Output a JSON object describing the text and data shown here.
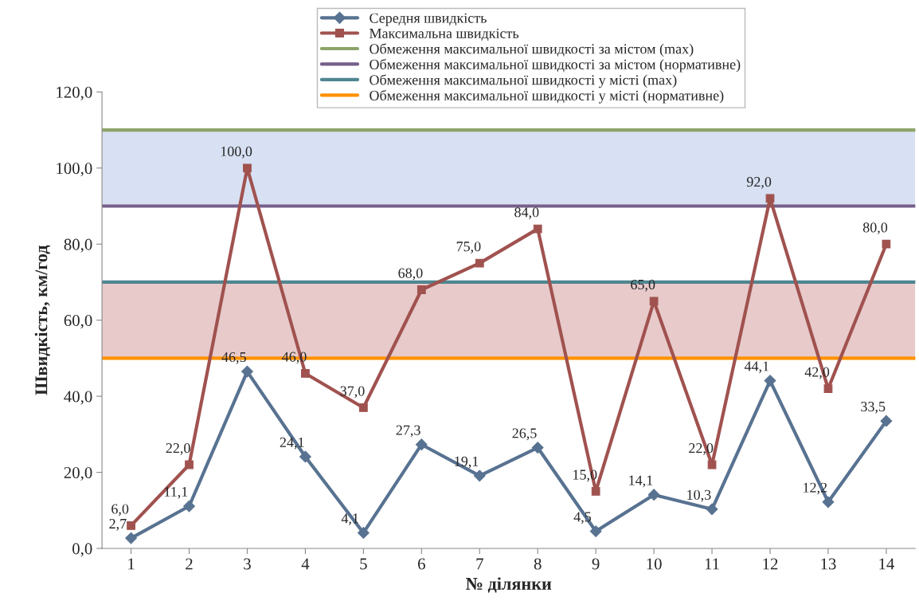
{
  "chart_data": {
    "type": "line",
    "xlabel": "№ ділянки",
    "ylabel": "Швидкість, км/год",
    "categories": [
      "1",
      "2",
      "3",
      "4",
      "5",
      "6",
      "7",
      "8",
      "9",
      "10",
      "11",
      "12",
      "13",
      "14"
    ],
    "series": [
      {
        "name": "Середня швидкість",
        "color": "#587291",
        "marker": "diamond",
        "values": [
          2.7,
          11.1,
          46.5,
          24.1,
          4.1,
          27.3,
          19.1,
          26.5,
          4.5,
          14.1,
          10.3,
          44.1,
          12.2,
          33.5
        ],
        "value_labels": [
          "2,7",
          "11,1",
          "46,5",
          "24,1",
          "4,1",
          "27,3",
          "19,1",
          "26,5",
          "4,5",
          "14,1",
          "10,3",
          "44,1",
          "12,2",
          "33,5"
        ]
      },
      {
        "name": "Максимальна швидкість",
        "color": "#a0524f",
        "marker": "square",
        "values": [
          6.0,
          22.0,
          100.0,
          46.0,
          37.0,
          68.0,
          75.0,
          84.0,
          15.0,
          65.0,
          22.0,
          92.0,
          42.0,
          80.0
        ],
        "value_labels": [
          "6,0",
          "22,0",
          "100,0",
          "46,0",
          "37,0",
          "68,0",
          "75,0",
          "84,0",
          "15,0",
          "65,0",
          "22,0",
          "92,0",
          "42,0",
          "80,0"
        ]
      }
    ],
    "ref_lines": [
      {
        "axis": "y",
        "value": 110,
        "label": "Обмеження максимальної швидкості за містом (max)",
        "color": "#8ca468"
      },
      {
        "axis": "y",
        "value": 90,
        "label": "Обмеження максимальної швидкості за містом (нормативне)",
        "color": "#76608a"
      },
      {
        "axis": "y",
        "value": 70,
        "label": "Обмеження максимальної швидкості у місті (max)",
        "color": "#4f8691"
      },
      {
        "axis": "y",
        "value": 50,
        "label": "Обмеження максимальної швидкості у місті (нормативне)",
        "color": "#ff9200"
      }
    ],
    "bands": [
      {
        "axis": "y",
        "from": 90,
        "to": 110,
        "color": "#d7e1f3"
      },
      {
        "axis": "y",
        "from": 50,
        "to": 70,
        "color": "#e8cacb"
      }
    ],
    "ylim": [
      0,
      120
    ],
    "yticks": [
      {
        "value": 0,
        "label": "0,0"
      },
      {
        "value": 20,
        "label": "20,0"
      },
      {
        "value": 40,
        "label": "40,0"
      },
      {
        "value": 60,
        "label": "60,0"
      },
      {
        "value": 80,
        "label": "80,0"
      },
      {
        "value": 100,
        "label": "100,0"
      },
      {
        "value": 120,
        "label": "120,0"
      }
    ],
    "grid": false,
    "legend": "top"
  }
}
